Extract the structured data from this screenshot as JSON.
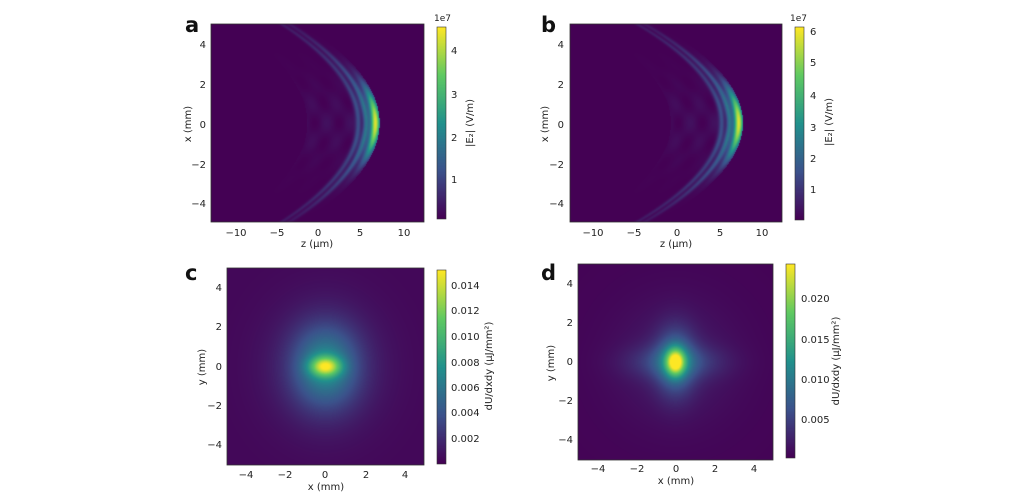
{
  "colors": {
    "background": "#ffffff",
    "colormap": [
      "#440154",
      "#3b528b",
      "#21918c",
      "#5ec962",
      "#fde725"
    ]
  },
  "chart_data": [
    {
      "panel": "a",
      "type": "heatmap",
      "xlabel": "z (μm)",
      "ylabel": "x (mm)",
      "xlim": [
        -13,
        12
      ],
      "ylim": [
        -5,
        5
      ],
      "xticks": [
        "−10",
        "−5",
        "0",
        "5",
        "10"
      ],
      "yticks": [
        "4",
        "2",
        "0",
        "−2",
        "−4"
      ],
      "colorbar": {
        "label": "|E₂| (V/m)",
        "multiplier": "1e7",
        "ticks": [
          "1",
          "2",
          "3",
          "4"
        ],
        "range": [
          0,
          4.6
        ]
      },
      "feature": {
        "shape": "parabolic wavefront",
        "apex_z": 6.3,
        "apex_x": 0,
        "curvature_z_per_mm2": 0.36,
        "peak": 4.5
      }
    },
    {
      "panel": "b",
      "type": "heatmap",
      "xlabel": "z (μm)",
      "ylabel": "x (mm)",
      "xlim": [
        -13,
        12
      ],
      "ylim": [
        -5,
        5
      ],
      "xticks": [
        "−10",
        "−5",
        "0",
        "5",
        "10"
      ],
      "yticks": [
        "4",
        "2",
        "0",
        "−2",
        "−4"
      ],
      "colorbar": {
        "label": "|E₂| (V/m)",
        "multiplier": "1e7",
        "ticks": [
          "1",
          "2",
          "3",
          "4",
          "5",
          "6"
        ],
        "range": [
          0,
          6.2
        ]
      },
      "feature": {
        "shape": "parabolic wavefront",
        "apex_z": 6.9,
        "apex_x": 0,
        "curvature_z_per_mm2": 0.4,
        "peak": 6.1
      }
    },
    {
      "panel": "c",
      "type": "heatmap",
      "xlabel": "x (mm)",
      "ylabel": "y (mm)",
      "xlim": [
        -5,
        5
      ],
      "ylim": [
        -5,
        5
      ],
      "xticks": [
        "−4",
        "−2",
        "0",
        "2",
        "4"
      ],
      "yticks": [
        "4",
        "2",
        "0",
        "−2",
        "−4"
      ],
      "colorbar": {
        "label": "dU/dxdy (μJ/mm²)",
        "ticks": [
          "0.014",
          "0.012",
          "0.010",
          "0.008",
          "0.006",
          "0.004",
          "0.002"
        ],
        "range": [
          0.0005,
          0.0152
        ]
      },
      "feature": {
        "shape": "broad elliptical spot",
        "center": [
          0,
          0
        ],
        "peak": 0.015
      }
    },
    {
      "panel": "d",
      "type": "heatmap",
      "xlabel": "x (mm)",
      "ylabel": "y (mm)",
      "xlim": [
        -5,
        5
      ],
      "ylim": [
        -5,
        5
      ],
      "xticks": [
        "−4",
        "−2",
        "0",
        "2",
        "4"
      ],
      "yticks": [
        "4",
        "2",
        "0",
        "−2",
        "−4"
      ],
      "colorbar": {
        "label": "dU/dxdy (μJ/mm²)",
        "ticks": [
          "0.020",
          "0.015",
          "0.010",
          "0.005"
        ],
        "range": [
          0.0003,
          0.0245
        ]
      },
      "feature": {
        "shape": "cross-shaped spot",
        "center": [
          0,
          0
        ],
        "peak": 0.024
      }
    }
  ]
}
